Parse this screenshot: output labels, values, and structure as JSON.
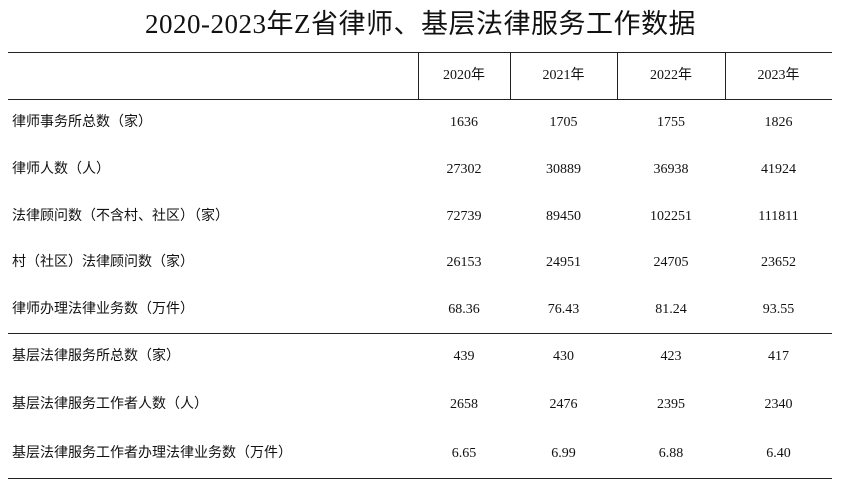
{
  "title": "2020-2023年Z省律师、基层法律服务工作数据",
  "table": {
    "columns": [
      "2020年",
      "2021年",
      "2022年",
      "2023年"
    ],
    "rows": [
      [
        "律师事务所总数（家）",
        "1636",
        "1705",
        "1755",
        "1826"
      ],
      [
        "律师人数（人）",
        "27302",
        "30889",
        "36938",
        "41924"
      ],
      [
        "法律顾问数（不含村、社区）（家）",
        "72739",
        "89450",
        "102251",
        "111811"
      ],
      [
        "村（社区）法律顾问数（家）",
        "26153",
        "24951",
        "24705",
        "23652"
      ],
      [
        "律师办理法律业务数（万件）",
        "68.36",
        "76.43",
        "81.24",
        "93.55"
      ],
      [
        "基层法律服务所总数（家）",
        "439",
        "430",
        "423",
        "417"
      ],
      [
        "基层法律服务工作者人数（人）",
        "2658",
        "2476",
        "2395",
        "2340"
      ],
      [
        "基层法律服务工作者办理法律业务数（万件）",
        "6.65",
        "6.99",
        "6.88",
        "6.40"
      ]
    ]
  }
}
